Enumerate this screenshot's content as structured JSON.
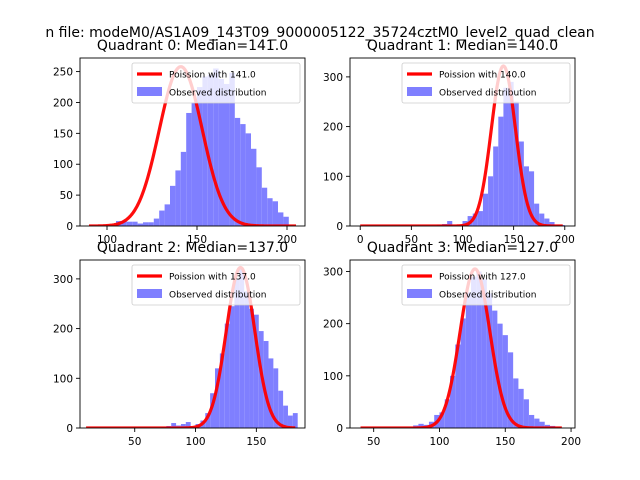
{
  "figure": {
    "suptitle": "n file: modeM0/AS1A09_143T09_9000005122_35724cztM0_level2_quad_clean"
  },
  "colors": {
    "hist": "#7f7fff",
    "poisson": "#ff0000",
    "legend_edge": "#cccccc"
  },
  "chart_data": [
    {
      "type": "bar",
      "title": "Quadrant 0: Median=141.0",
      "median": 141,
      "xlim": [
        85,
        210
      ],
      "ylim": [
        0,
        272
      ],
      "xticks": [
        100,
        150,
        200
      ],
      "yticks": [
        0,
        50,
        100,
        150,
        200,
        250
      ],
      "legend": [
        "Poission with 141.0",
        "Observed distribution"
      ],
      "legend_loc": "upper right",
      "hist": {
        "bin_width": 3,
        "x": [
          87,
          90,
          93,
          96,
          99,
          102,
          105,
          108,
          111,
          114,
          117,
          120,
          123,
          126,
          129,
          132,
          135,
          138,
          141,
          144,
          147,
          150,
          153,
          156,
          159,
          162,
          165,
          168,
          171,
          174,
          177,
          180,
          183,
          186,
          189,
          192,
          195,
          198
        ],
        "values": [
          0,
          0,
          0,
          0,
          0,
          0,
          8,
          8,
          7,
          7,
          4,
          6,
          6,
          12,
          25,
          35,
          65,
          90,
          120,
          183,
          200,
          225,
          242,
          245,
          255,
          238,
          230,
          248,
          175,
          165,
          150,
          125,
          95,
          62,
          45,
          40,
          22,
          15
        ]
      },
      "poisson": {
        "lambda": 141,
        "peak": 258,
        "sigma": 11.9,
        "x_range": [
          90,
          205
        ]
      }
    },
    {
      "type": "bar",
      "title": "Quadrant 1: Median=140.0",
      "median": 140,
      "xlim": [
        -10,
        210
      ],
      "ylim": [
        0,
        338
      ],
      "xticks": [
        0,
        50,
        100,
        150,
        200
      ],
      "yticks": [
        0,
        100,
        200,
        300
      ],
      "legend": [
        "Poission with 140.0",
        "Observed distribution"
      ],
      "legend_loc": "upper right",
      "hist": {
        "bin_width": 5,
        "x": [
          5,
          10,
          15,
          20,
          25,
          30,
          35,
          40,
          45,
          50,
          55,
          60,
          65,
          70,
          75,
          80,
          85,
          90,
          95,
          100,
          105,
          110,
          115,
          120,
          125,
          130,
          135,
          140,
          145,
          150,
          155,
          160,
          165,
          170,
          175,
          180,
          185,
          190,
          195
        ],
        "values": [
          0,
          0,
          0,
          0,
          0,
          0,
          0,
          0,
          0,
          0,
          0,
          0,
          0,
          0,
          3,
          4,
          10,
          3,
          3,
          10,
          20,
          25,
          30,
          65,
          100,
          160,
          220,
          278,
          290,
          250,
          170,
          120,
          110,
          45,
          25,
          15,
          8,
          3,
          2
        ]
      },
      "poisson": {
        "lambda": 140,
        "peak": 322,
        "sigma": 11.8,
        "x_range": [
          0,
          198
        ]
      }
    },
    {
      "type": "bar",
      "title": "Quadrant 2: Median=137.0",
      "median": 137,
      "xlim": [
        5,
        190
      ],
      "ylim": [
        0,
        338
      ],
      "xticks": [
        50,
        100,
        150
      ],
      "yticks": [
        0,
        100,
        200,
        300
      ],
      "legend": [
        "Poission with 137.0",
        "Observed distribution"
      ],
      "legend_loc": "upper right",
      "hist": {
        "bin_width": 4,
        "x": [
          12,
          16,
          20,
          24,
          28,
          32,
          36,
          40,
          44,
          48,
          52,
          56,
          60,
          64,
          68,
          72,
          76,
          80,
          84,
          88,
          92,
          96,
          100,
          104,
          108,
          112,
          116,
          120,
          124,
          128,
          132,
          136,
          140,
          144,
          148,
          152,
          156,
          160,
          164,
          168,
          172,
          176,
          180
        ],
        "values": [
          0,
          0,
          0,
          0,
          0,
          0,
          0,
          0,
          0,
          0,
          0,
          0,
          0,
          0,
          0,
          2,
          4,
          10,
          5,
          8,
          12,
          4,
          8,
          15,
          30,
          70,
          120,
          150,
          210,
          245,
          300,
          320,
          275,
          240,
          228,
          195,
          175,
          140,
          120,
          75,
          45,
          25,
          30
        ]
      },
      "poisson": {
        "lambda": 137,
        "peak": 323,
        "sigma": 11.7,
        "x_range": [
          10,
          182
        ]
      }
    },
    {
      "type": "bar",
      "title": "Quadrant 3: Median=127.0",
      "median": 127,
      "xlim": [
        32,
        203
      ],
      "ylim": [
        0,
        322
      ],
      "xticks": [
        50,
        100,
        150,
        200
      ],
      "yticks": [
        0,
        100,
        200,
        300
      ],
      "legend": [
        "Poission with 127.0",
        "Observed distribution"
      ],
      "legend_loc": "upper right",
      "hist": {
        "bin_width": 4,
        "x": [
          40,
          44,
          48,
          52,
          56,
          60,
          64,
          68,
          72,
          76,
          80,
          84,
          88,
          92,
          96,
          100,
          104,
          108,
          112,
          116,
          120,
          124,
          128,
          132,
          136,
          140,
          144,
          148,
          152,
          156,
          160,
          164,
          168,
          172,
          176,
          180,
          184,
          188
        ],
        "values": [
          0,
          0,
          0,
          0,
          0,
          0,
          0,
          0,
          0,
          0,
          5,
          8,
          6,
          12,
          25,
          30,
          55,
          100,
          160,
          210,
          260,
          290,
          300,
          285,
          258,
          225,
          200,
          178,
          145,
          95,
          75,
          55,
          25,
          18,
          12,
          6,
          4,
          2
        ]
      },
      "poisson": {
        "lambda": 127,
        "peak": 305,
        "sigma": 11.3,
        "x_range": [
          40,
          193
        ]
      }
    }
  ]
}
